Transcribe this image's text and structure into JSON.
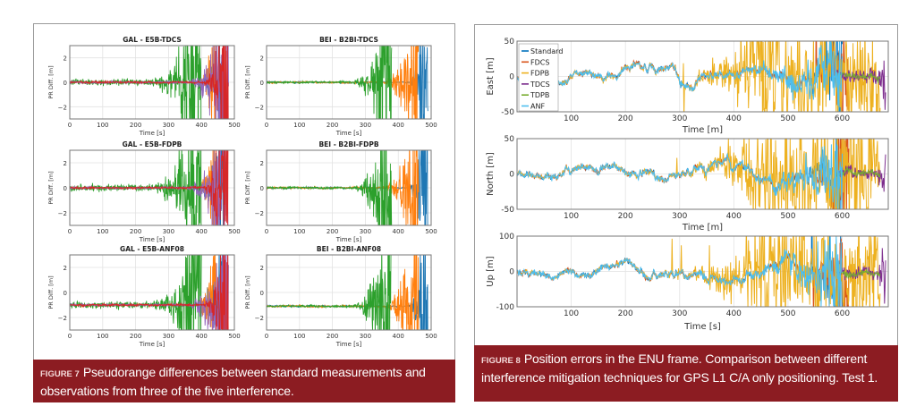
{
  "figure7": {
    "caption_label": "FIGURE 7",
    "caption_text": "Pseudorange differences between standard measurements and observations from three of the five interference."
  },
  "figure8": {
    "caption_label": "FIGURE 8",
    "caption_text": "Position errors in the ENU frame. Comparison between different interference mitigation techniques for GPS L1 C/A only positioning. Test 1."
  },
  "chart_data": [
    {
      "type": "line",
      "title": "GAL - E5B-TDCS",
      "xlabel": "Time [s]",
      "ylabel": "PR Diff. [m]",
      "xlim": [
        0,
        500
      ],
      "ylim": [
        -3,
        3
      ],
      "xticks": [
        "0",
        "100",
        "200",
        "300",
        "400",
        "500"
      ],
      "yticks": [
        "−2",
        "0",
        "2"
      ],
      "grid": true,
      "baseline": 0,
      "series": [
        {
          "color": "#1f77b4"
        },
        {
          "color": "#ff7f0e"
        },
        {
          "color": "#2ca02c"
        },
        {
          "color": "#9467bd"
        },
        {
          "color": "#d62728"
        }
      ]
    },
    {
      "type": "line",
      "title": "BEI - B2BI-TDCS",
      "xlabel": "Time [s]",
      "ylabel": "PR Diff. [m]",
      "xlim": [
        0,
        500
      ],
      "ylim": [
        -3,
        3
      ],
      "xticks": [
        "0",
        "100",
        "200",
        "300",
        "400",
        "500"
      ],
      "yticks": [
        "−2",
        "0",
        "2"
      ],
      "grid": true,
      "baseline": 0,
      "series": [
        {
          "color": "#1f77b4"
        },
        {
          "color": "#ff7f0e"
        },
        {
          "color": "#2ca02c"
        }
      ]
    },
    {
      "type": "line",
      "title": "GAL - E5B-FDPB",
      "xlabel": "Time [s]",
      "ylabel": "PR Diff. [m]",
      "xlim": [
        0,
        500
      ],
      "ylim": [
        -3,
        3
      ],
      "xticks": [
        "0",
        "100",
        "200",
        "300",
        "400",
        "500"
      ],
      "yticks": [
        "−2",
        "0",
        "2"
      ],
      "grid": true,
      "baseline": 0,
      "series": [
        {
          "color": "#1f77b4"
        },
        {
          "color": "#ff7f0e"
        },
        {
          "color": "#2ca02c"
        },
        {
          "color": "#9467bd"
        },
        {
          "color": "#d62728"
        }
      ]
    },
    {
      "type": "line",
      "title": "BEI - B2BI-FDPB",
      "xlabel": "Time [s]",
      "ylabel": "PR Diff. [m]",
      "xlim": [
        0,
        500
      ],
      "ylim": [
        -3,
        3
      ],
      "xticks": [
        "0",
        "100",
        "200",
        "300",
        "400",
        "500"
      ],
      "yticks": [
        "−2",
        "0",
        "2"
      ],
      "grid": true,
      "baseline": 0,
      "series": [
        {
          "color": "#1f77b4"
        },
        {
          "color": "#ff7f0e"
        },
        {
          "color": "#2ca02c"
        }
      ]
    },
    {
      "type": "line",
      "title": "GAL - E5B-ANF08",
      "xlabel": "Time [s]",
      "ylabel": "PR Diff. [m]",
      "xlim": [
        0,
        500
      ],
      "ylim": [
        -3,
        3
      ],
      "xticks": [
        "0",
        "100",
        "200",
        "300",
        "400",
        "500"
      ],
      "yticks": [
        "−2",
        "0",
        "2"
      ],
      "grid": true,
      "baseline": -1,
      "series": [
        {
          "color": "#1f77b4"
        },
        {
          "color": "#ff7f0e"
        },
        {
          "color": "#2ca02c"
        },
        {
          "color": "#9467bd"
        },
        {
          "color": "#d62728"
        }
      ]
    },
    {
      "type": "line",
      "title": "BEI - B2BI-ANF08",
      "xlabel": "Time [s]",
      "ylabel": "PR Diff. [m]",
      "xlim": [
        0,
        500
      ],
      "ylim": [
        -3,
        3
      ],
      "xticks": [
        "0",
        "100",
        "200",
        "300",
        "400",
        "500"
      ],
      "yticks": [
        "−2",
        "0",
        "2"
      ],
      "grid": true,
      "baseline": -1.1,
      "series": [
        {
          "color": "#1f77b4"
        },
        {
          "color": "#ff7f0e"
        },
        {
          "color": "#2ca02c"
        }
      ]
    },
    {
      "type": "line",
      "title": "",
      "xlabel": "Time [m]",
      "ylabel": "East [m]",
      "xlim": [
        0,
        685
      ],
      "ylim": [
        -50,
        50
      ],
      "xticks": [
        "100",
        "200",
        "300",
        "400",
        "500",
        "600"
      ],
      "yticks": [
        "-50",
        "0",
        "50"
      ],
      "grid": true,
      "legend": "top-left",
      "series": [
        {
          "name": "Standard",
          "color": "#0072bd"
        },
        {
          "name": "FDCS",
          "color": "#d95319"
        },
        {
          "name": "FDPB",
          "color": "#edb120"
        },
        {
          "name": "TDCS",
          "color": "#7e2f8e"
        },
        {
          "name": "TDPB",
          "color": "#77ac30"
        },
        {
          "name": "ANF",
          "color": "#4dbeee"
        }
      ]
    },
    {
      "type": "line",
      "title": "",
      "xlabel": "Time [m]",
      "ylabel": "North [m]",
      "xlim": [
        0,
        685
      ],
      "ylim": [
        -50,
        50
      ],
      "xticks": [
        "100",
        "200",
        "300",
        "400",
        "500",
        "600"
      ],
      "yticks": [
        "-50",
        "0",
        "50"
      ],
      "grid": true,
      "series": [
        {
          "color": "#0072bd"
        },
        {
          "color": "#d95319"
        },
        {
          "color": "#edb120"
        },
        {
          "color": "#7e2f8e"
        },
        {
          "color": "#77ac30"
        },
        {
          "color": "#4dbeee"
        }
      ]
    },
    {
      "type": "line",
      "title": "",
      "xlabel": "Time [s]",
      "ylabel": "Up [m]",
      "xlim": [
        0,
        685
      ],
      "ylim": [
        -100,
        100
      ],
      "xticks": [
        "100",
        "200",
        "300",
        "400",
        "500",
        "600"
      ],
      "yticks": [
        "-100",
        "0",
        "100"
      ],
      "grid": true,
      "series": [
        {
          "color": "#0072bd"
        },
        {
          "color": "#d95319"
        },
        {
          "color": "#edb120"
        },
        {
          "color": "#7e2f8e"
        },
        {
          "color": "#77ac30"
        },
        {
          "color": "#4dbeee"
        }
      ]
    }
  ]
}
